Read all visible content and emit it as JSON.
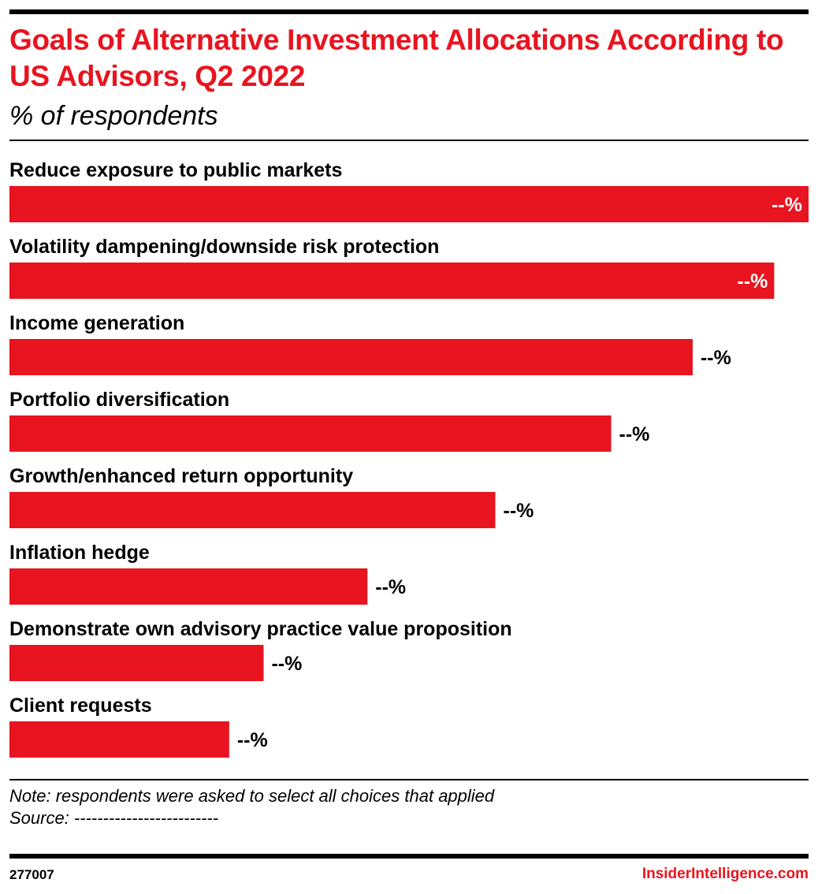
{
  "header": {
    "title": "Goals of Alternative Investment Allocations According to US Advisors, Q2 2022",
    "subtitle": "% of respondents"
  },
  "chart_data": {
    "type": "bar",
    "orientation": "horizontal",
    "title": "Goals of Alternative Investment Allocations According to US Advisors, Q2 2022",
    "subtitle": "% of respondents",
    "categories": [
      "Reduce exposure to public markets",
      "Volatility dampening/downside risk protection",
      "Income generation",
      "Portfolio diversification",
      "Growth/enhanced return opportunity",
      "Inflation hedge",
      "Demonstrate own advisory practice value proposition",
      "Client requests"
    ],
    "values": [
      100,
      95.7,
      85.5,
      75.3,
      60.8,
      44.8,
      31.8,
      27.5
    ],
    "value_labels": [
      "--%",
      "--%",
      "--%",
      "--%",
      "--%",
      "--%",
      "--%",
      "--%"
    ],
    "xlim": [
      0,
      100
    ],
    "bar_color": "#e8141f",
    "grid": false,
    "legend": "none"
  },
  "footer": {
    "note": "Note: respondents were asked to select all choices that applied",
    "source": "Source: -------------------------",
    "chart_id": "277007",
    "brand": "InsiderIntelligence.com"
  }
}
